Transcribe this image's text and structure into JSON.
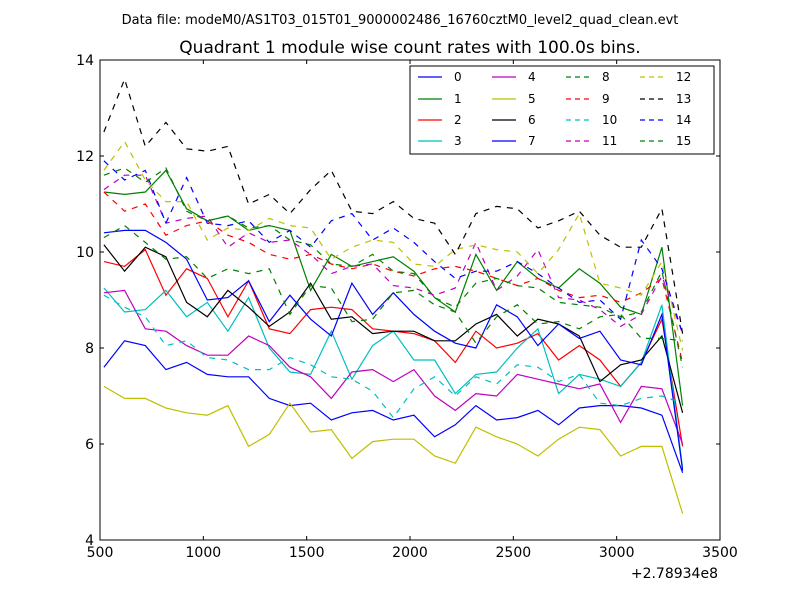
{
  "suptitle": "Data file: modeM0/AS1T03_015T01_9000002486_16760cztM0_level2_quad_clean.evt",
  "chart_data": {
    "type": "line",
    "title": "Quadrant 1 module wise count rates with 100.0s bins.",
    "xlabel": "",
    "ylabel": "",
    "xlim": [
      500,
      3500
    ],
    "ylim": [
      4,
      14
    ],
    "x_offset_label": "+2.78934e8",
    "xticks": [
      500,
      1000,
      1500,
      2000,
      2500,
      3000,
      3500
    ],
    "xtick_labels": [
      "500",
      "1000",
      "1500",
      "2000",
      "2500",
      "3000",
      "3500"
    ],
    "yticks": [
      4,
      6,
      8,
      10,
      12,
      14
    ],
    "ytick_labels": [
      "4",
      "6",
      "8",
      "10",
      "12",
      "14"
    ],
    "legend_position": "top-right",
    "x": [
      519,
      619,
      719,
      819,
      919,
      1019,
      1119,
      1219,
      1319,
      1419,
      1519,
      1619,
      1719,
      1819,
      1919,
      2019,
      2119,
      2219,
      2319,
      2419,
      2519,
      2619,
      2719,
      2819,
      2919,
      3019,
      3119,
      3219,
      3319
    ],
    "series": [
      {
        "name": "0",
        "color": "#0000ff",
        "dash": "solid",
        "values": [
          7.6,
          8.15,
          8.05,
          7.55,
          7.7,
          7.45,
          7.4,
          7.4,
          6.95,
          6.8,
          6.85,
          6.5,
          6.65,
          6.7,
          6.5,
          6.6,
          6.15,
          6.4,
          6.8,
          6.5,
          6.55,
          6.7,
          6.4,
          6.75,
          6.8,
          6.8,
          6.75,
          6.6,
          5.4
        ]
      },
      {
        "name": "1",
        "color": "#008000",
        "dash": "solid",
        "values": [
          11.25,
          11.2,
          11.25,
          11.7,
          10.9,
          10.65,
          10.75,
          10.45,
          10.55,
          10.45,
          9.2,
          9.95,
          9.7,
          9.8,
          9.9,
          9.6,
          9.05,
          8.75,
          9.95,
          9.2,
          9.8,
          9.45,
          9.25,
          9.65,
          9.35,
          8.85,
          8.7,
          10.1,
          6.8
        ]
      },
      {
        "name": "2",
        "color": "#ff0000",
        "dash": "solid",
        "values": [
          9.8,
          9.7,
          10.05,
          9.1,
          9.65,
          9.45,
          8.65,
          9.4,
          8.4,
          8.3,
          8.8,
          8.85,
          8.8,
          8.4,
          8.35,
          8.3,
          8.15,
          7.7,
          8.35,
          8.0,
          8.1,
          8.3,
          7.75,
          8.05,
          7.75,
          7.2,
          7.7,
          8.6,
          5.95
        ]
      },
      {
        "name": "3",
        "color": "#00bfbf",
        "dash": "solid",
        "values": [
          9.25,
          8.75,
          8.8,
          9.2,
          8.65,
          8.95,
          8.35,
          9.05,
          8.0,
          7.5,
          7.45,
          8.35,
          7.35,
          8.05,
          8.35,
          7.75,
          7.75,
          7.05,
          7.45,
          7.5,
          8.0,
          8.4,
          7.05,
          7.45,
          7.35,
          7.2,
          7.7,
          8.9,
          5.5
        ]
      },
      {
        "name": "4",
        "color": "#bf00bf",
        "dash": "solid",
        "values": [
          9.15,
          9.2,
          8.4,
          8.35,
          8.05,
          7.85,
          7.85,
          8.25,
          8.05,
          7.6,
          7.4,
          6.95,
          7.5,
          7.55,
          7.3,
          7.55,
          7.0,
          6.7,
          7.05,
          7.0,
          7.45,
          7.35,
          7.25,
          7.15,
          7.25,
          6.45,
          7.2,
          7.15,
          6.0
        ]
      },
      {
        "name": "5",
        "color": "#bfbf00",
        "dash": "solid",
        "values": [
          7.2,
          6.95,
          6.95,
          6.75,
          6.65,
          6.6,
          6.8,
          5.95,
          6.2,
          6.85,
          6.25,
          6.3,
          5.7,
          6.05,
          6.1,
          6.1,
          5.75,
          5.6,
          6.35,
          6.15,
          6.0,
          5.75,
          6.1,
          6.35,
          6.3,
          5.75,
          5.95,
          5.95,
          4.55
        ]
      },
      {
        "name": "6",
        "color": "#000000",
        "dash": "solid",
        "values": [
          10.15,
          9.6,
          10.1,
          9.9,
          8.95,
          8.65,
          9.2,
          8.85,
          8.45,
          8.75,
          9.35,
          8.6,
          8.65,
          8.3,
          8.35,
          8.35,
          8.15,
          8.15,
          8.5,
          8.7,
          8.25,
          8.6,
          8.5,
          8.25,
          7.3,
          7.65,
          7.75,
          8.25,
          6.65
        ]
      },
      {
        "name": "7",
        "color": "#0000ff",
        "dash": "solid",
        "values": [
          10.4,
          10.45,
          10.45,
          10.2,
          9.85,
          9.0,
          9.05,
          9.4,
          8.55,
          9.1,
          8.6,
          8.25,
          9.35,
          8.7,
          9.15,
          8.7,
          8.35,
          8.1,
          8.0,
          8.9,
          8.65,
          8.05,
          8.5,
          8.2,
          8.35,
          7.75,
          7.65,
          8.7,
          5.45
        ]
      },
      {
        "name": "8",
        "color": "#008000",
        "dash": "dashed",
        "values": [
          10.3,
          10.55,
          10.2,
          9.85,
          9.9,
          9.45,
          9.65,
          9.55,
          9.65,
          8.7,
          9.3,
          9.25,
          8.55,
          8.6,
          9.15,
          9.2,
          8.9,
          8.75,
          8.1,
          8.65,
          8.9,
          8.5,
          8.55,
          8.4,
          8.65,
          8.7,
          8.2,
          8.2,
          8.15
        ]
      },
      {
        "name": "9",
        "color": "#ff0000",
        "dash": "dashed",
        "values": [
          11.25,
          10.85,
          11.0,
          10.35,
          10.55,
          10.65,
          10.35,
          10.2,
          9.95,
          9.85,
          9.95,
          9.75,
          9.65,
          9.75,
          9.6,
          9.5,
          9.65,
          9.7,
          9.6,
          9.45,
          9.3,
          9.45,
          9.2,
          9.05,
          9.1,
          8.95,
          9.15,
          9.45,
          7.7
        ]
      },
      {
        "name": "10",
        "color": "#00bfbf",
        "dash": "dashed",
        "values": [
          9.1,
          8.85,
          8.65,
          8.05,
          8.15,
          7.8,
          7.75,
          7.55,
          7.55,
          7.8,
          7.65,
          7.4,
          7.35,
          7.1,
          6.55,
          7.15,
          7.4,
          7.0,
          7.4,
          7.25,
          7.65,
          7.6,
          7.3,
          7.45,
          6.85,
          6.8,
          6.95,
          7.0,
          6.85
        ]
      },
      {
        "name": "11",
        "color": "#bf00bf",
        "dash": "dashed",
        "values": [
          11.3,
          11.6,
          11.6,
          10.6,
          10.7,
          10.75,
          10.1,
          10.4,
          10.2,
          10.25,
          9.95,
          9.55,
          9.7,
          9.75,
          9.3,
          9.25,
          9.1,
          9.25,
          10.2,
          9.2,
          9.5,
          10.05,
          9.05,
          9.0,
          8.8,
          8.45,
          8.7,
          9.5,
          8.3
        ]
      },
      {
        "name": "12",
        "color": "#bfbf00",
        "dash": "dashed",
        "values": [
          11.7,
          12.3,
          11.5,
          11.05,
          11.05,
          10.25,
          10.5,
          10.45,
          10.7,
          10.55,
          10.5,
          9.85,
          10.1,
          10.25,
          10.2,
          9.75,
          9.7,
          10.05,
          10.15,
          10.05,
          10.0,
          9.55,
          10.05,
          10.8,
          9.35,
          9.25,
          9.1,
          9.8,
          7.95
        ]
      },
      {
        "name": "13",
        "color": "#000000",
        "dash": "dashed",
        "values": [
          12.5,
          13.6,
          12.2,
          12.7,
          12.15,
          12.1,
          12.2,
          11.0,
          11.2,
          10.8,
          11.3,
          11.7,
          10.85,
          10.8,
          11.05,
          10.7,
          10.6,
          9.95,
          10.8,
          10.95,
          10.9,
          10.5,
          10.65,
          10.85,
          10.35,
          10.1,
          10.1,
          10.9,
          8.3
        ]
      },
      {
        "name": "14",
        "color": "#0000ff",
        "dash": "dashed",
        "values": [
          11.9,
          11.5,
          11.7,
          10.6,
          11.55,
          10.6,
          10.55,
          10.65,
          10.2,
          10.45,
          10.1,
          10.65,
          10.8,
          10.25,
          10.5,
          10.2,
          9.8,
          9.45,
          9.6,
          9.6,
          9.8,
          9.55,
          9.25,
          8.95,
          9.0,
          8.6,
          10.25,
          9.65,
          8.3
        ]
      },
      {
        "name": "15",
        "color": "#008000",
        "dash": "dashed",
        "values": [
          11.6,
          11.75,
          11.45,
          11.75,
          10.85,
          10.65,
          10.75,
          10.5,
          10.55,
          10.25,
          10.15,
          9.75,
          9.7,
          9.95,
          9.6,
          9.55,
          9.05,
          8.85,
          9.35,
          9.45,
          9.3,
          9.25,
          8.95,
          8.9,
          8.85,
          8.65,
          8.75,
          9.6,
          7.6
        ]
      }
    ]
  }
}
